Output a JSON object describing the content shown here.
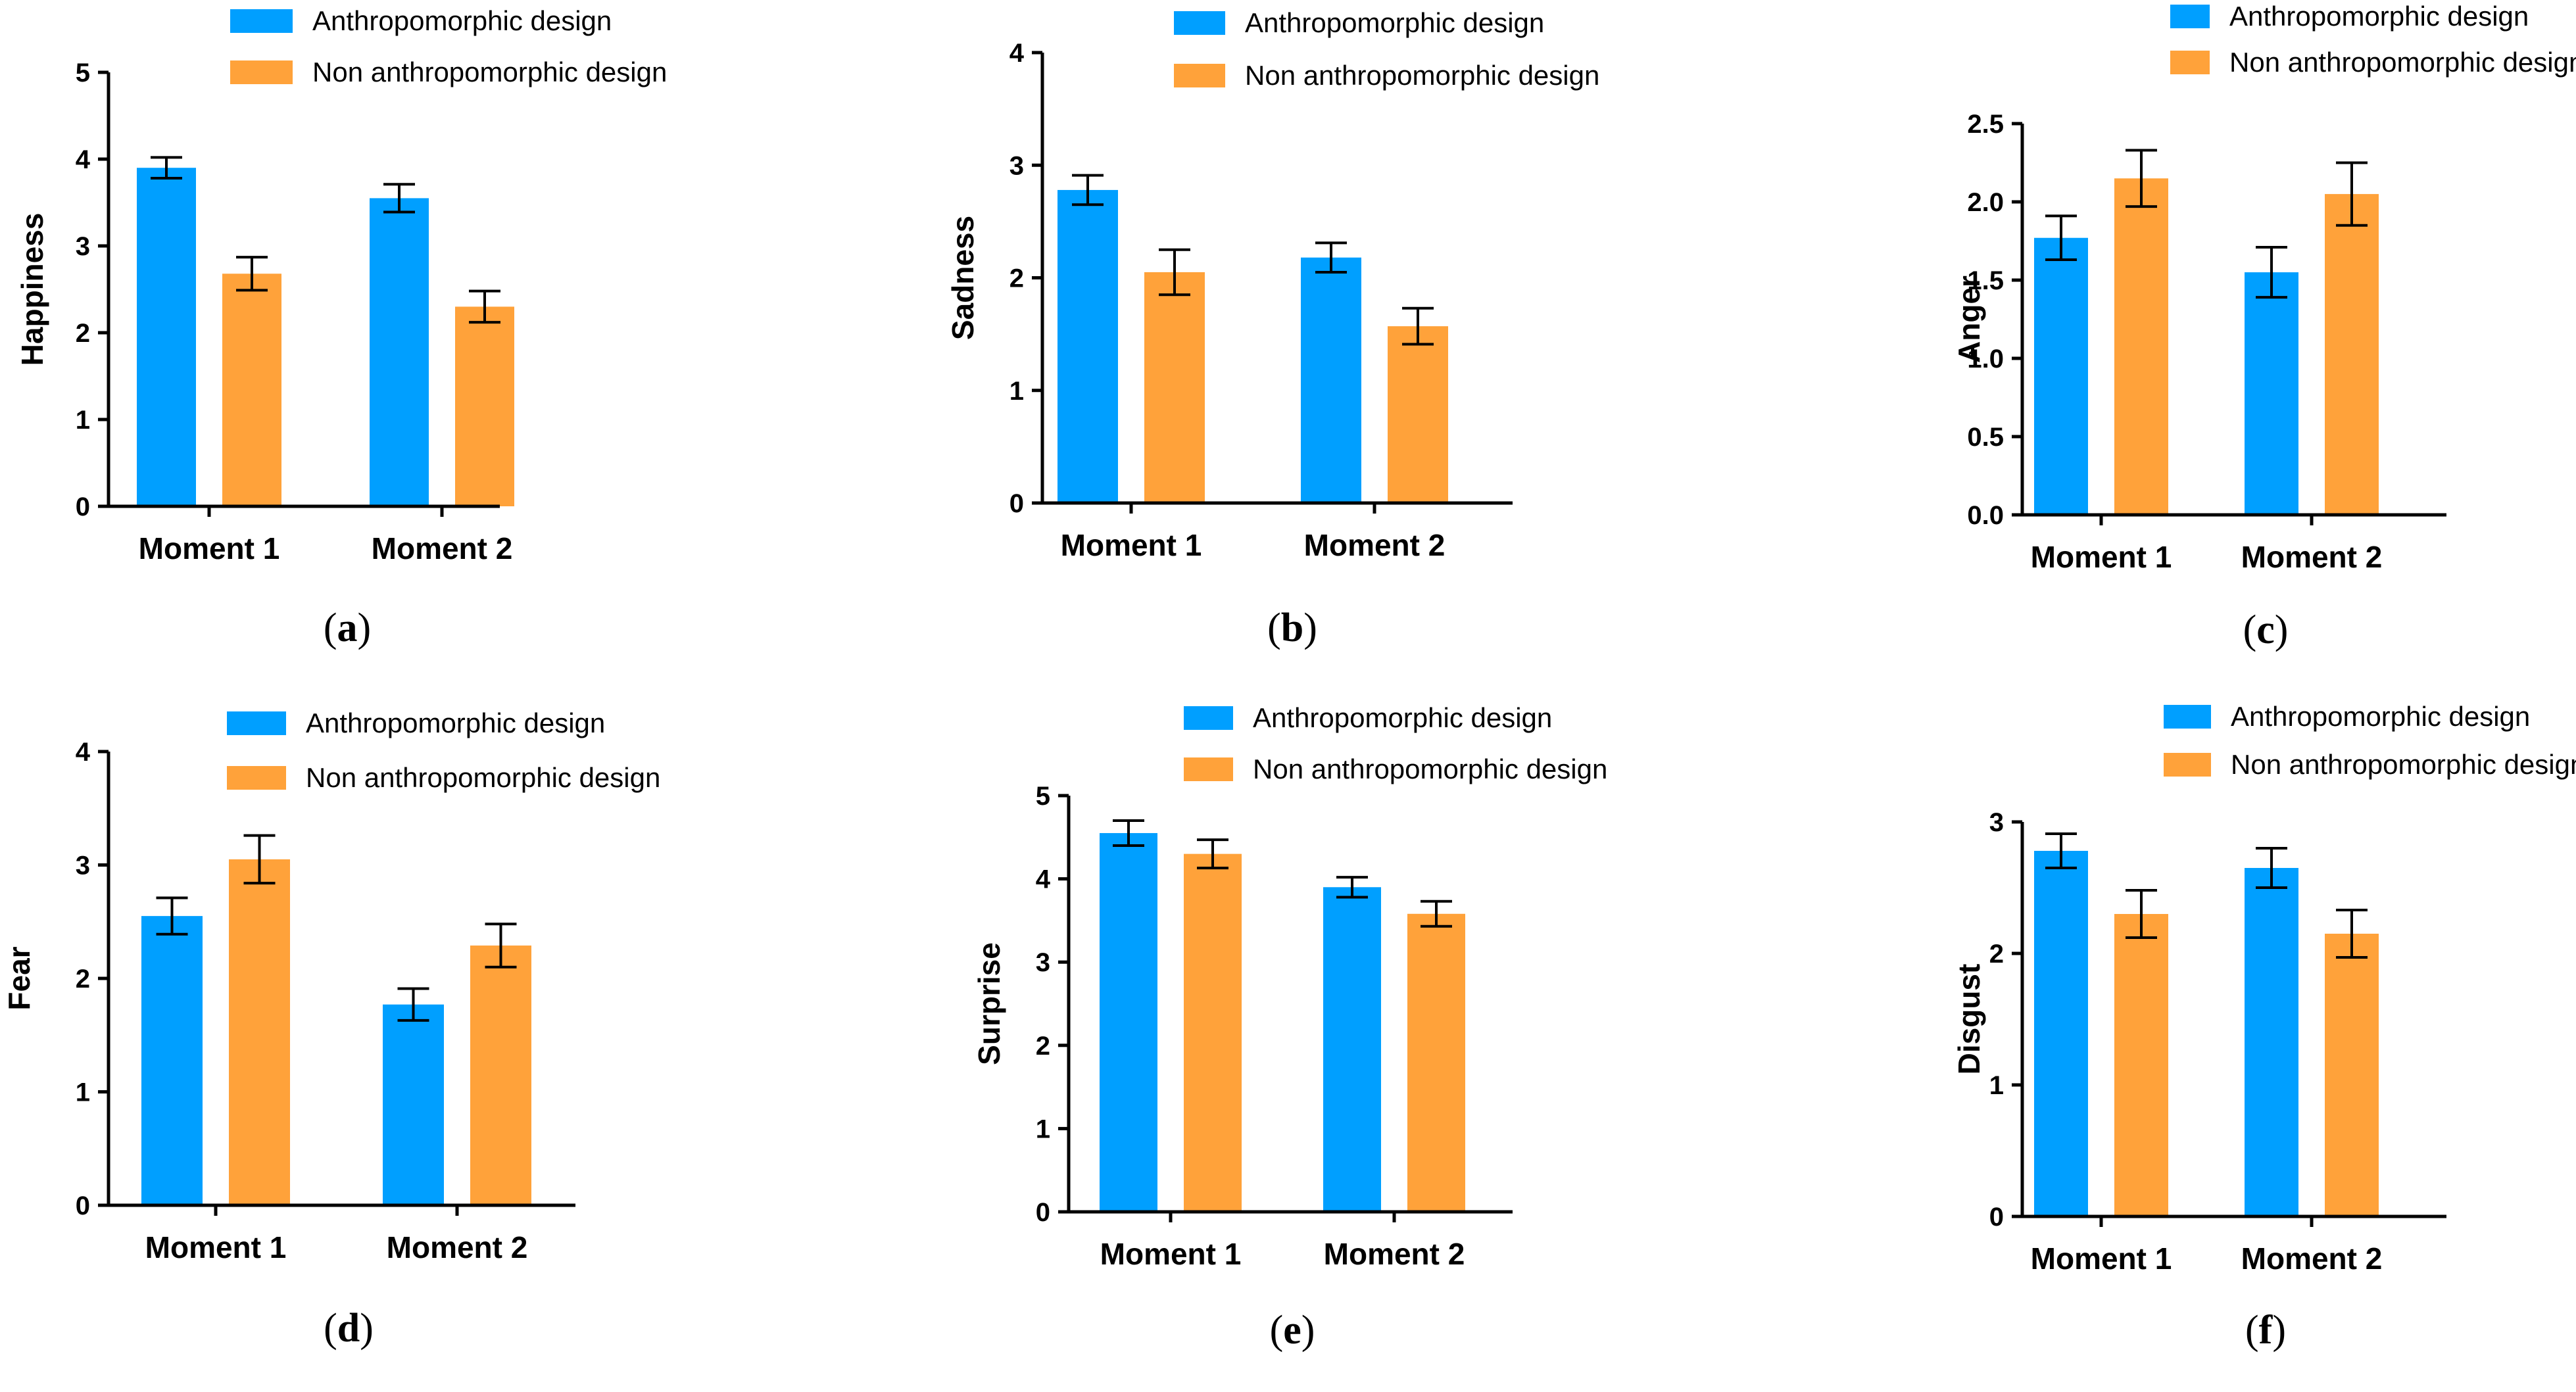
{
  "colors": {
    "anthropomorphic": "#009FFF",
    "non_anthropomorphic": "#FFA23A",
    "axis": "#000000"
  },
  "chart_data": [
    {
      "type": "bar",
      "panel": "(a)",
      "ylabel": "Happiness",
      "categories": [
        "Moment 1",
        "Moment 2"
      ],
      "ylim": [
        0,
        5
      ],
      "yticks": [
        "0",
        "1",
        "2",
        "3",
        "4",
        "5"
      ],
      "series": [
        {
          "name": "Anthropomorphic design",
          "values": [
            3.9,
            3.55
          ],
          "errors": [
            0.12,
            0.16
          ]
        },
        {
          "name": "Non anthropomorphic design",
          "values": [
            2.68,
            2.3
          ],
          "errors": [
            0.19,
            0.18
          ]
        }
      ]
    },
    {
      "type": "bar",
      "panel": "(b)",
      "ylabel": "Sadness",
      "categories": [
        "Moment 1",
        "Moment 2"
      ],
      "ylim": [
        0,
        4
      ],
      "yticks": [
        "0",
        "1",
        "2",
        "3",
        "4"
      ],
      "series": [
        {
          "name": "Anthropomorphic design",
          "values": [
            2.78,
            2.18
          ],
          "errors": [
            0.13,
            0.13
          ]
        },
        {
          "name": "Non anthropomorphic design",
          "values": [
            2.05,
            1.57
          ],
          "errors": [
            0.2,
            0.16
          ]
        }
      ]
    },
    {
      "type": "bar",
      "panel": "(c)",
      "ylabel": "Anger",
      "categories": [
        "Moment 1",
        "Moment 2"
      ],
      "ylim": [
        0,
        2.5
      ],
      "yticks": [
        "0.0",
        "0.5",
        "1.0",
        "1.5",
        "2.0",
        "2.5"
      ],
      "series": [
        {
          "name": "Anthropomorphic design",
          "values": [
            1.77,
            1.55
          ],
          "errors": [
            0.14,
            0.16
          ]
        },
        {
          "name": "Non anthropomorphic design",
          "values": [
            2.15,
            2.05
          ],
          "errors": [
            0.18,
            0.2
          ]
        }
      ]
    },
    {
      "type": "bar",
      "panel": "(d)",
      "ylabel": "Fear",
      "categories": [
        "Moment 1",
        "Moment 2"
      ],
      "ylim": [
        0,
        4
      ],
      "yticks": [
        "0",
        "1",
        "2",
        "3",
        "4"
      ],
      "series": [
        {
          "name": "Anthropomorphic design",
          "values": [
            2.55,
            1.77
          ],
          "errors": [
            0.16,
            0.14
          ]
        },
        {
          "name": "Non anthropomorphic design",
          "values": [
            3.05,
            2.29
          ],
          "errors": [
            0.21,
            0.19
          ]
        }
      ]
    },
    {
      "type": "bar",
      "panel": "(e)",
      "ylabel": "Surprise",
      "categories": [
        "Moment 1",
        "Moment 2"
      ],
      "ylim": [
        0,
        5
      ],
      "yticks": [
        "0",
        "1",
        "2",
        "3",
        "4",
        "5"
      ],
      "series": [
        {
          "name": "Anthropomorphic design",
          "values": [
            4.55,
            3.9
          ],
          "errors": [
            0.15,
            0.12
          ]
        },
        {
          "name": "Non anthropomorphic design",
          "values": [
            4.3,
            3.58
          ],
          "errors": [
            0.17,
            0.15
          ]
        }
      ]
    },
    {
      "type": "bar",
      "panel": "(f)",
      "ylabel": "Disgust",
      "categories": [
        "Moment 1",
        "Moment 2"
      ],
      "ylim": [
        0,
        3
      ],
      "yticks": [
        "0",
        "1",
        "2",
        "3"
      ],
      "series": [
        {
          "name": "Anthropomorphic design",
          "values": [
            2.78,
            2.65
          ],
          "errors": [
            0.13,
            0.15
          ]
        },
        {
          "name": "Non anthropomorphic design",
          "values": [
            2.3,
            2.15
          ],
          "errors": [
            0.18,
            0.18
          ]
        }
      ]
    }
  ]
}
